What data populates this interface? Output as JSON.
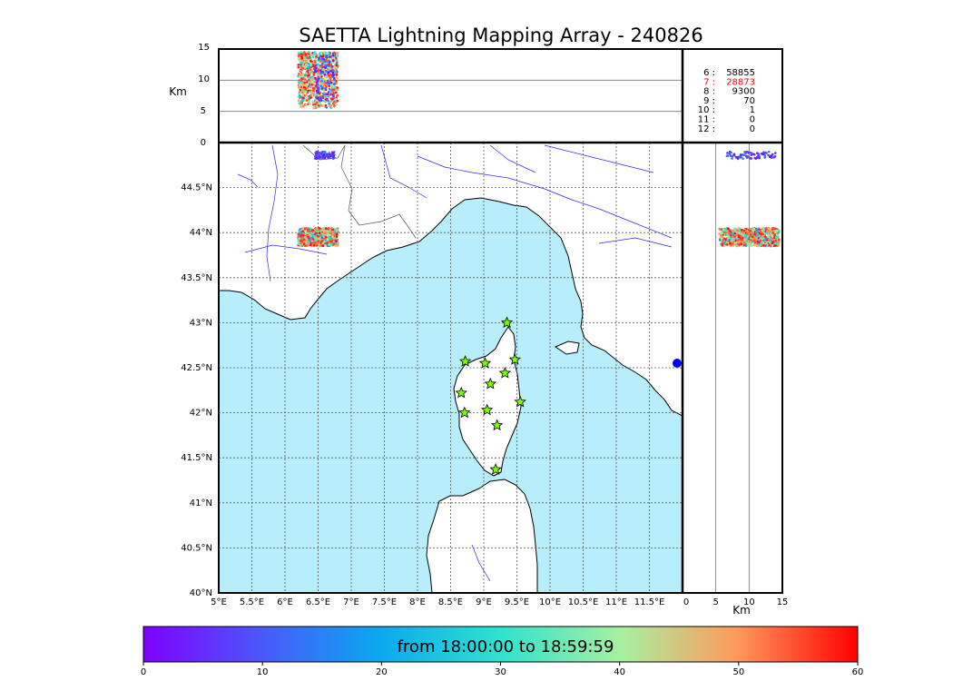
{
  "chart_data": {
    "type": "scatter",
    "title": "SAETTA Lightning Mapping Array - 240826",
    "altitude_axis": {
      "label": "Km",
      "ticks": [
        "0",
        "5",
        "10",
        "15"
      ],
      "range": [
        0,
        15
      ]
    },
    "map": {
      "lon_range": [
        5.0,
        12.0
      ],
      "lat_range": [
        40.0,
        45.0
      ],
      "lon_ticks": [
        "5°E",
        "5.5°E",
        "6°E",
        "6.5°E",
        "7°E",
        "7.5°E",
        "8°E",
        "8.5°E",
        "9°E",
        "9.5°E",
        "10°E",
        "10.5°E",
        "11°E",
        "11.5°E"
      ],
      "lat_ticks": [
        "40°N",
        "40.5°N",
        "41°N",
        "41.5°N",
        "42°N",
        "42.5°N",
        "43°N",
        "43.5°N",
        "44°N",
        "44.5°N"
      ],
      "grid": true,
      "sea_color": "#b8eefb",
      "land_color": "#ffffff",
      "river_color": "#2a2ae8",
      "border_color": "#555555"
    },
    "side_axis": {
      "label": "Km",
      "ticks": [
        "0",
        "5",
        "10",
        "15"
      ],
      "range": [
        0,
        15
      ]
    },
    "stations": [
      {
        "lon": 9.35,
        "lat": 43.0
      },
      {
        "lon": 8.72,
        "lat": 42.57
      },
      {
        "lon": 9.02,
        "lat": 42.55
      },
      {
        "lon": 9.47,
        "lat": 42.59
      },
      {
        "lon": 9.32,
        "lat": 42.44
      },
      {
        "lon": 9.1,
        "lat": 42.32
      },
      {
        "lon": 8.66,
        "lat": 42.22
      },
      {
        "lon": 9.55,
        "lat": 42.12
      },
      {
        "lon": 9.05,
        "lat": 42.03
      },
      {
        "lon": 8.71,
        "lat": 42.0
      },
      {
        "lon": 9.2,
        "lat": 41.86
      },
      {
        "lon": 9.18,
        "lat": 41.37
      }
    ],
    "station_color": "#7cfc00",
    "clusters": [
      {
        "lon": [
          6.2,
          6.8
        ],
        "lat": [
          43.85,
          44.05
        ],
        "alt": [
          5.5,
          14.5
        ],
        "count": 900
      },
      {
        "lon": [
          6.45,
          6.75
        ],
        "lat": [
          44.82,
          44.9
        ],
        "alt": [
          6.5,
          14.0
        ],
        "count": 80
      }
    ],
    "stats": [
      {
        "label": "6  :",
        "value": "58855",
        "color": "#000000"
      },
      {
        "label": "7  :",
        "value": "28873",
        "color": "#ff0000"
      },
      {
        "label": "8  :",
        "value": "9300",
        "color": "#000000"
      },
      {
        "label": "9  :",
        "value": "70",
        "color": "#000000"
      },
      {
        "label": "10 :",
        "value": "1",
        "color": "#000000"
      },
      {
        "label": "11 :",
        "value": "0",
        "color": "#000000"
      },
      {
        "label": "12 :",
        "value": "0",
        "color": "#000000"
      }
    ],
    "colorbar": {
      "colormap": "rainbow",
      "range": [
        0,
        60
      ],
      "ticks": [
        "0",
        "10",
        "20",
        "30",
        "40",
        "50",
        "60"
      ],
      "label": "from 18:00:00 to 18:59:59"
    }
  }
}
